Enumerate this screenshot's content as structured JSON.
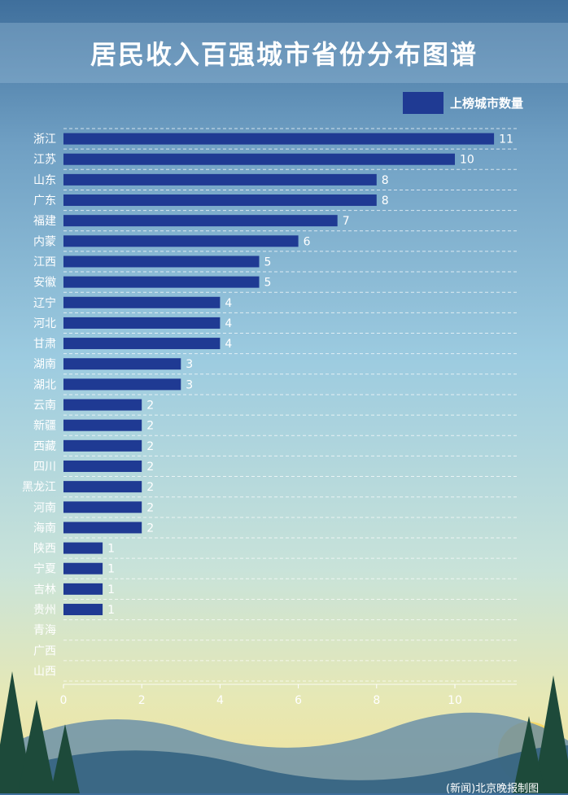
{
  "title": "居民收入百强城市省份分布图谱",
  "footer": "(新闻)北京晚报制图",
  "colors": {
    "bar": "#1f3a93",
    "text": "#ffffff"
  },
  "chart_data": {
    "type": "bar",
    "orientation": "horizontal",
    "title": "居民收入百强城市省份分布图谱",
    "legend": {
      "position": "top-right",
      "entries": [
        "上榜城市数量"
      ]
    },
    "grid": true,
    "xlim": [
      0,
      11
    ],
    "xticks": [
      0,
      2,
      4,
      6,
      8,
      10
    ],
    "categories": [
      "浙江",
      "江苏",
      "山东",
      "广东",
      "福建",
      "内蒙",
      "江西",
      "安徽",
      "辽宁",
      "河北",
      "甘肃",
      "湖南",
      "湖北",
      "云南",
      "新疆",
      "西藏",
      "四川",
      "黑龙江",
      "河南",
      "海南",
      "陕西",
      "宁夏",
      "吉林",
      "贵州",
      "青海",
      "广西",
      "山西"
    ],
    "series": [
      {
        "name": "上榜城市数量",
        "values": [
          11,
          10,
          8,
          8,
          7,
          6,
          5,
          5,
          4,
          4,
          4,
          3,
          3,
          2,
          2,
          2,
          2,
          2,
          2,
          2,
          1,
          1,
          1,
          1,
          0,
          0,
          0
        ]
      }
    ]
  }
}
